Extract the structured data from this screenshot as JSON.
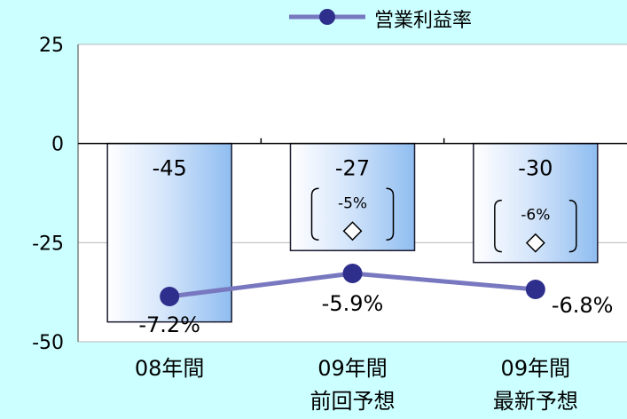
{
  "chart_data": {
    "type": "bar",
    "categories": [
      [
        "08年間"
      ],
      [
        "09年間",
        "前回予想"
      ],
      [
        "09年間",
        "最新予想"
      ]
    ],
    "ylim": [
      -50,
      25
    ],
    "yticks": [
      25,
      0,
      -25,
      -50
    ],
    "grid": true,
    "bar_series": {
      "values": [
        -45,
        -27,
        -30
      ],
      "labels": [
        "-45",
        "-27",
        "-30"
      ]
    },
    "line_series": {
      "name": "営業利益率",
      "values": [
        -7.2,
        -5.9,
        -6.8
      ],
      "labels": [
        "-7.2%",
        "-5.9%",
        "-6.8%"
      ]
    },
    "previous_margin_markers": [
      {
        "category_index": 1,
        "label": "-5%"
      },
      {
        "category_index": 2,
        "label": "-6%"
      }
    ],
    "legend_position": "top",
    "colors": {
      "background": "#ccffff",
      "plot_background": "#ffffff",
      "bar_light": "#e8f2fd",
      "bar_dark": "#8fbdf0",
      "bar_border": "#1a1a2e",
      "line": "#7878c0",
      "marker": "#2e2e8c"
    }
  }
}
